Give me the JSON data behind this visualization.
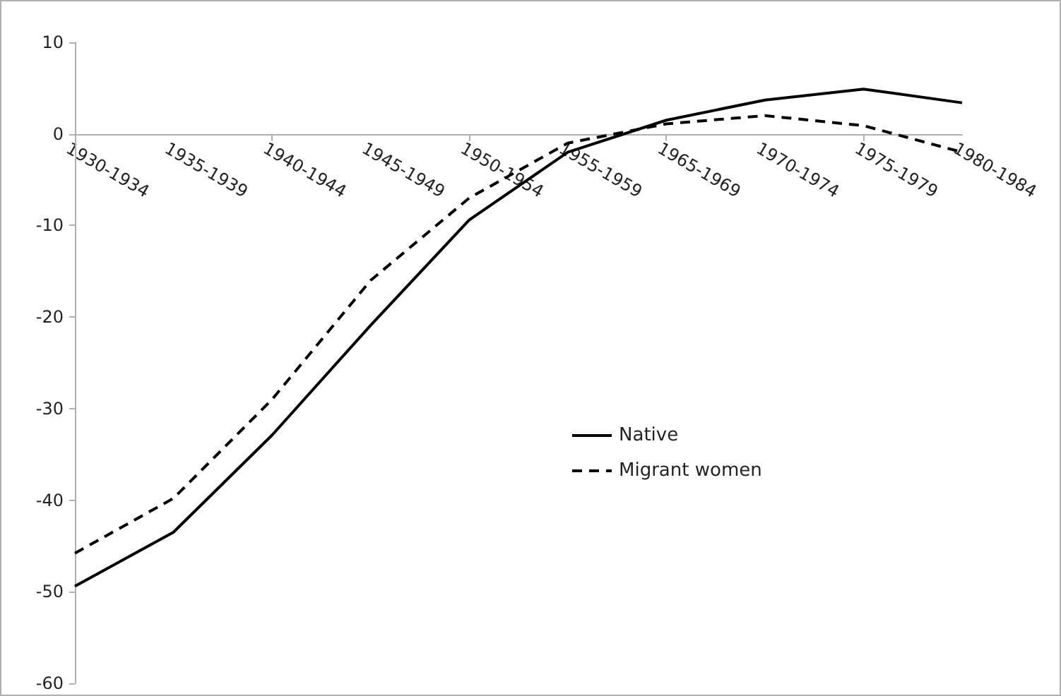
{
  "chart_data": {
    "type": "line",
    "categories": [
      "1930-1934",
      "1935-1939",
      "1940-1944",
      "1945-1949",
      "1950-1954",
      "1955-1959",
      "1965-1969",
      "1970-1974",
      "1975-1979",
      "1980-1984"
    ],
    "series": [
      {
        "name": "Native",
        "color": "#000000",
        "line_style": "solid",
        "values": [
          -49.4,
          -43.5,
          -32.9,
          -20.9,
          -9.4,
          -2.0,
          1.5,
          3.7,
          4.9,
          3.4
        ]
      },
      {
        "name": "Migrant women",
        "color": "#000000",
        "line_style": "dashed",
        "values": [
          -45.8,
          -39.8,
          -29.0,
          -16.0,
          -7.0,
          -1.0,
          1.1,
          2.0,
          0.9,
          -2.0
        ]
      }
    ],
    "ylim": [
      -60,
      10
    ],
    "yticks": [
      -60,
      -50,
      -40,
      -30,
      -20,
      -10,
      0,
      10
    ],
    "grid": false,
    "legend": "center",
    "marker": "none"
  }
}
